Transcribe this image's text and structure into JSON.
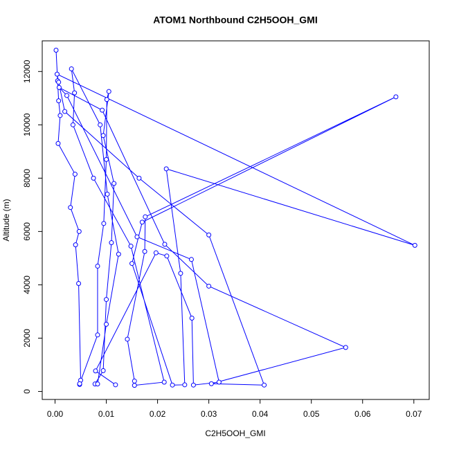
{
  "chart_data": {
    "type": "line",
    "title": "ATOM1 Northbound C2H5OOH_GMI",
    "xlabel": "C2H5OOH_GMI",
    "ylabel": "Altitude (m)",
    "xlim": [
      -0.0025,
      0.073
    ],
    "ylim": [
      -300,
      13150
    ],
    "xticks": [
      {
        "value": 0,
        "label": "0.00"
      },
      0.01,
      0.02,
      0.03,
      0.04,
      0.05,
      0.06,
      0.07
    ],
    "yticks": [
      0,
      2000,
      4000,
      6000,
      8000,
      10000,
      12000
    ],
    "series": [
      {
        "color": "#0000ff",
        "x": [
          0.0002,
          0.0005,
          0.0007,
          0.001,
          0.0006,
          0.0039,
          0.003,
          0.0047,
          0.004,
          0.0046,
          0.005,
          0.0048,
          0.0048,
          0.0083,
          0.0083,
          0.0095,
          0.01,
          0.0101,
          0.0105,
          0.0094,
          0.0115,
          0.011,
          0.01,
          0.0094,
          0.0078,
          0.0083,
          0.01,
          0.0124,
          0.0102,
          0.0088,
          0.0032,
          0.0038,
          0.0035,
          0.0075,
          0.0148,
          0.0213,
          0.0155,
          0.0155,
          0.0141,
          0.0175,
          0.0176,
          0.0665,
          0.017,
          0.015,
          0.0229,
          0.0253,
          0.0245,
          0.0217,
          0.0702,
          0.0004,
          0.0007,
          0.0019,
          0.0164,
          0.03,
          0.0408,
          0.0305,
          0.0567,
          0.03,
          0.0214,
          0.0092,
          0.0008,
          0.0023,
          0.016,
          0.0266,
          0.032,
          0.027,
          0.0267,
          0.0218,
          0.0197,
          0.0079,
          0.0118
        ],
        "values": [
          12800,
          11650,
          10900,
          10350,
          9300,
          8150,
          6900,
          6000,
          5500,
          4050,
          420,
          260,
          290,
          2120,
          4700,
          6300,
          8700,
          10950,
          11250,
          9600,
          7800,
          5580,
          3450,
          780,
          280,
          280,
          2520,
          5150,
          7400,
          10000,
          12100,
          11200,
          10000,
          8000,
          5450,
          350,
          230,
          390,
          1960,
          5250,
          6550,
          11050,
          6350,
          4800,
          240,
          250,
          4430,
          8350,
          5480,
          11900,
          11600,
          10500,
          8000,
          5870,
          240,
          290,
          1650,
          3950,
          5520,
          10550,
          11400,
          11100,
          5800,
          4950,
          350,
          240,
          2750,
          5080,
          5200,
          770,
          250
        ]
      }
    ]
  }
}
